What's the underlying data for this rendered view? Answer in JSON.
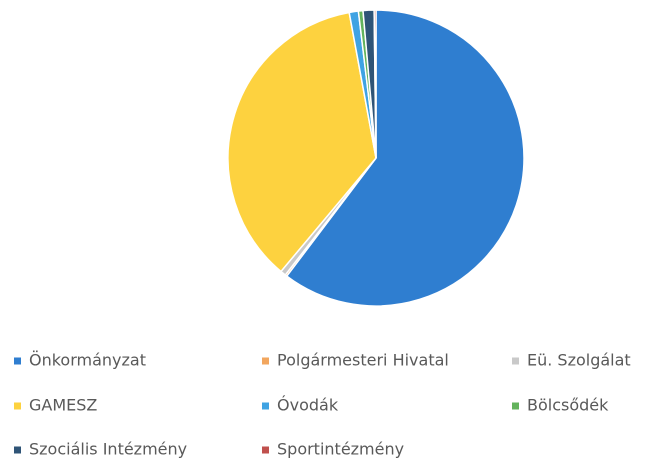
{
  "chart_data": {
    "type": "pie",
    "categories": [
      "Önkormányzat",
      "Polgármesteri Hivatal",
      "Eü. Szolgálat",
      "GAMESZ",
      "Óvodák",
      "Bölcsődék",
      "Szociális Intézmény",
      "Sportintézmény"
    ],
    "values": [
      60.3,
      0.2,
      0.6,
      36,
      1.0,
      0.5,
      1.2,
      0.2
    ],
    "colors": [
      "#2f7ed0",
      "#f2a65e",
      "#c9c9c9",
      "#fdd23f",
      "#3fa3e3",
      "#63b35c",
      "#2f5477",
      "#c0504d"
    ]
  }
}
